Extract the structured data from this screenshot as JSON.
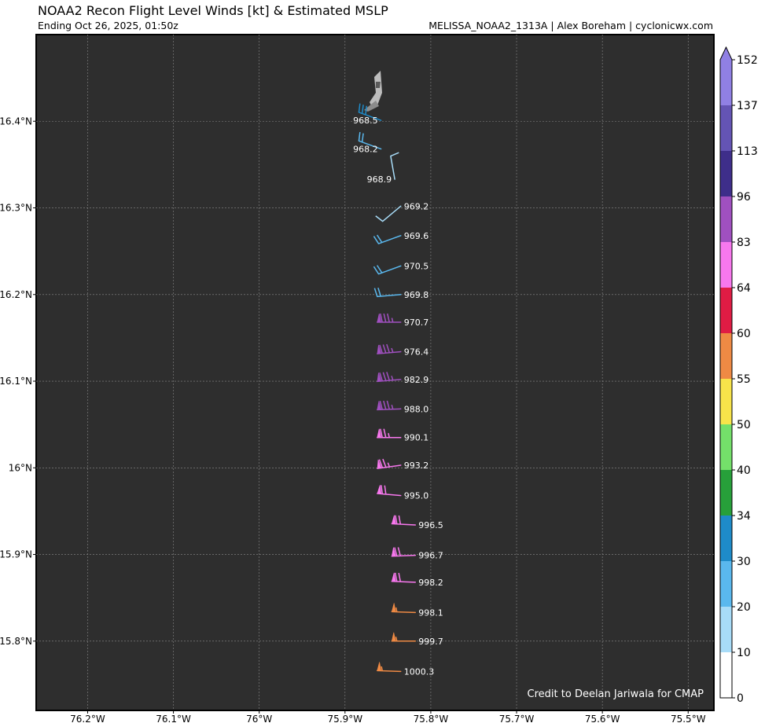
{
  "title": "NOAA2 Recon Flight Level Winds [kt] & Estimated MSLP",
  "subtitle": "Ending Oct 26, 2025, 01:50z",
  "source": "MELISSA_NOAA2_1313A | Alex Boreham | cyclonicwx.com",
  "credit": "Credit to Deelan Jariwala for CMAP",
  "colors": {
    "background": "#2e2e2e",
    "grid": "#8a8a8a",
    "label": "#ffffff"
  },
  "chart_data": {
    "type": "scatter",
    "x_unit": "longitude (°W)",
    "y_unit": "latitude (°N)",
    "xlim": [
      -76.26,
      -75.47
    ],
    "ylim": [
      15.72,
      16.5
    ],
    "grid": true,
    "x_ticks": [
      {
        "value": -76.2,
        "label": "76.2°W"
      },
      {
        "value": -76.1,
        "label": "76.1°W"
      },
      {
        "value": -76.0,
        "label": "76°W"
      },
      {
        "value": -75.9,
        "label": "75.9°W"
      },
      {
        "value": -75.8,
        "label": "75.8°W"
      },
      {
        "value": -75.7,
        "label": "75.7°W"
      },
      {
        "value": -75.6,
        "label": "75.6°W"
      },
      {
        "value": -75.5,
        "label": "75.5°W"
      }
    ],
    "y_ticks": [
      {
        "value": 16.4,
        "label": "16.4°N"
      },
      {
        "value": 16.3,
        "label": "16.3°N"
      },
      {
        "value": 16.2,
        "label": "16.2°N"
      },
      {
        "value": 16.1,
        "label": "16.1°N"
      },
      {
        "value": 16.0,
        "label": "16°N"
      },
      {
        "value": 15.9,
        "label": "15.9°N"
      },
      {
        "value": 15.8,
        "label": "15.8°N"
      }
    ],
    "points": [
      {
        "lon": -75.858,
        "lat": 16.401,
        "mslp": "968.5",
        "speed": 30,
        "dir": 290
      },
      {
        "lon": -75.858,
        "lat": 16.368,
        "mslp": "968.2",
        "speed": 20,
        "dir": 290
      },
      {
        "lon": -75.842,
        "lat": 16.333,
        "mslp": "968.9",
        "speed": 10,
        "dir": 350
      },
      {
        "lon": -75.835,
        "lat": 16.302,
        "mslp": "969.2",
        "speed": 10,
        "dir": 230
      },
      {
        "lon": -75.835,
        "lat": 16.268,
        "mslp": "969.6",
        "speed": 20,
        "dir": 250
      },
      {
        "lon": -75.835,
        "lat": 16.233,
        "mslp": "970.5",
        "speed": 20,
        "dir": 250
      },
      {
        "lon": -75.835,
        "lat": 16.2,
        "mslp": "969.8",
        "speed": 20,
        "dir": 265
      },
      {
        "lon": -75.835,
        "lat": 16.168,
        "mslp": "970.7",
        "speed": 85,
        "dir": 270
      },
      {
        "lon": -75.835,
        "lat": 16.134,
        "mslp": "976.4",
        "speed": 85,
        "dir": 265
      },
      {
        "lon": -75.835,
        "lat": 16.102,
        "mslp": "982.9",
        "speed": 85,
        "dir": 265
      },
      {
        "lon": -75.835,
        "lat": 16.068,
        "mslp": "988.0",
        "speed": 85,
        "dir": 268
      },
      {
        "lon": -75.835,
        "lat": 16.035,
        "mslp": "990.1",
        "speed": 75,
        "dir": 270
      },
      {
        "lon": -75.835,
        "lat": 16.003,
        "mslp": "993.2",
        "speed": 75,
        "dir": 262
      },
      {
        "lon": -75.835,
        "lat": 15.968,
        "mslp": "995.0",
        "speed": 70,
        "dir": 275
      },
      {
        "lon": -75.818,
        "lat": 15.934,
        "mslp": "996.5",
        "speed": 70,
        "dir": 273
      },
      {
        "lon": -75.818,
        "lat": 15.899,
        "mslp": "996.7",
        "speed": 70,
        "dir": 268
      },
      {
        "lon": -75.818,
        "lat": 15.868,
        "mslp": "998.2",
        "speed": 70,
        "dir": 272
      },
      {
        "lon": -75.818,
        "lat": 15.833,
        "mslp": "998.1",
        "speed": 55,
        "dir": 272
      },
      {
        "lon": -75.818,
        "lat": 15.8,
        "mslp": "999.7",
        "speed": 55,
        "dir": 270
      },
      {
        "lon": -75.835,
        "lat": 15.765,
        "mslp": "1000.3",
        "speed": 55,
        "dir": 272
      }
    ],
    "colorbar": {
      "ticks": [
        "0",
        "10",
        "20",
        "30",
        "34",
        "40",
        "50",
        "55",
        "60",
        "64",
        "83",
        "96",
        "113",
        "137",
        "152"
      ],
      "colors": [
        "#ffffff",
        "#a8dcf8",
        "#5ab8ee",
        "#1e8bc9",
        "#27a03a",
        "#74e06a",
        "#f8e44a",
        "#ef8a44",
        "#e01c44",
        "#f878ee",
        "#a050c0",
        "#3e2e8a",
        "#6454b4",
        "#9080e4"
      ]
    }
  }
}
